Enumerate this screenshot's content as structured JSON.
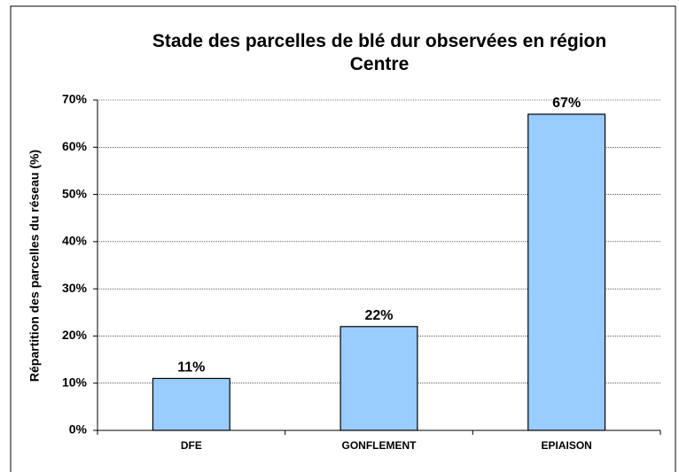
{
  "chart_data": {
    "type": "bar",
    "title": "Stade des parcelles de blé dur observées en région Centre",
    "y_label": "Répartition des parcelles du réseau (%)",
    "categories": [
      "DFE",
      "GONFLEMENT",
      "EPIAISON"
    ],
    "values": [
      11,
      22,
      67
    ],
    "value_labels": [
      "11%",
      "22%",
      "67%"
    ],
    "color": "#99ccff",
    "ylim": [
      0,
      70
    ],
    "yticks": [
      {
        "value": 0,
        "label": "0%"
      },
      {
        "value": 10,
        "label": "10%"
      },
      {
        "value": 20,
        "label": "20%"
      },
      {
        "value": 30,
        "label": "30%"
      },
      {
        "value": 40,
        "label": "40%"
      },
      {
        "value": 50,
        "label": "50%"
      },
      {
        "value": 60,
        "label": "60%"
      },
      {
        "value": 70,
        "label": "70%"
      }
    ],
    "grid": true
  }
}
